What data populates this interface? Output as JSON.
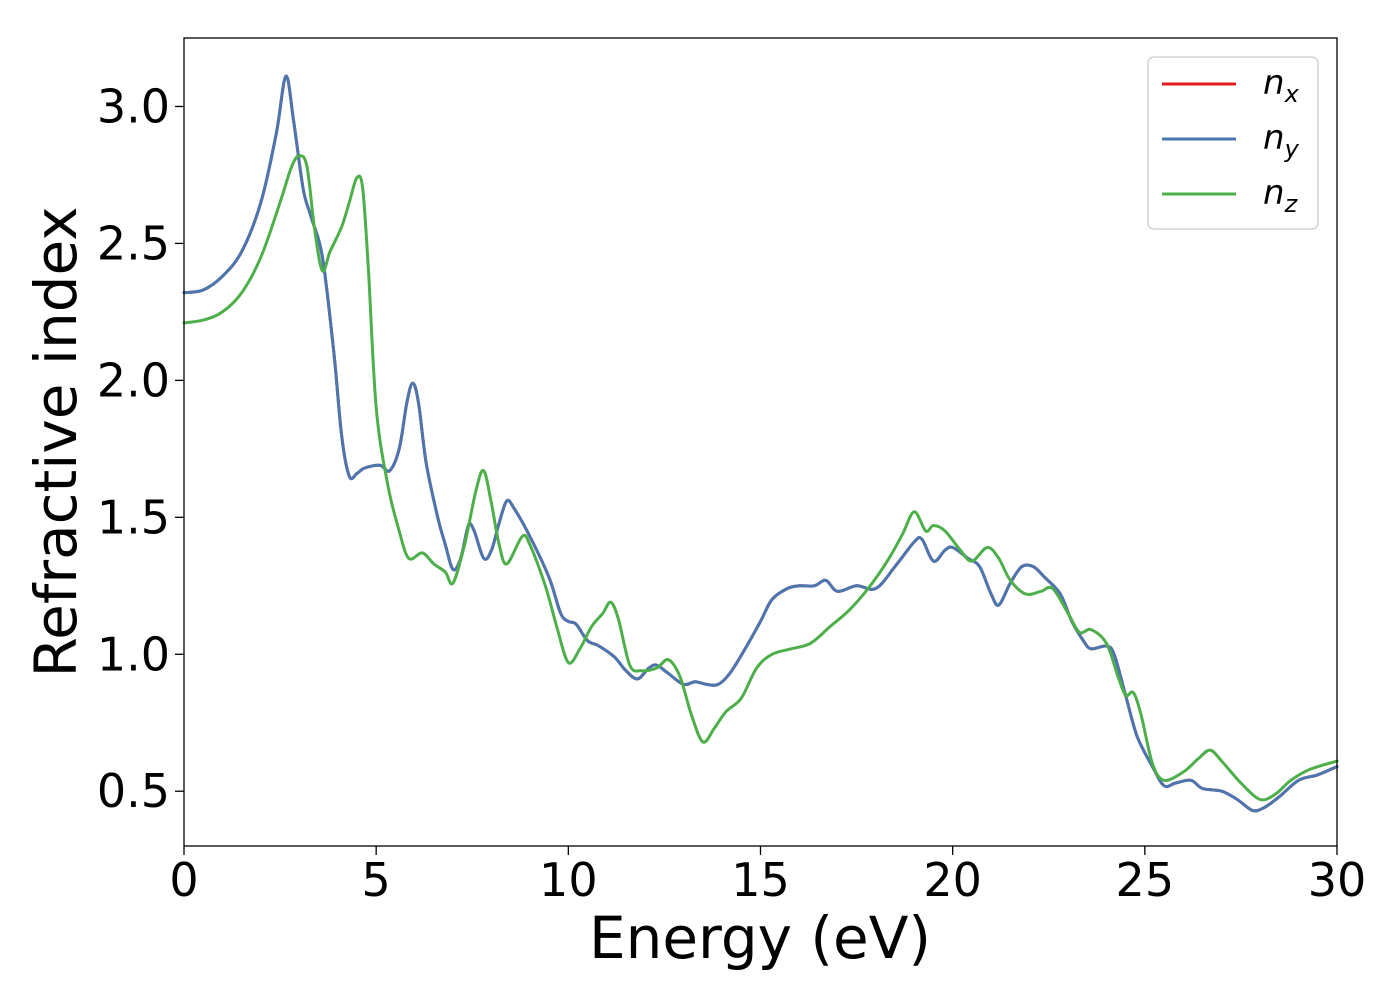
{
  "chart_data": {
    "type": "line",
    "title": "",
    "xlabel": "Energy (eV)",
    "ylabel": "Refractive index",
    "xlim": [
      0,
      30
    ],
    "ylim": [
      0.3,
      3.25
    ],
    "xticks": [
      0,
      5,
      10,
      15,
      20,
      25,
      30
    ],
    "yticks": [
      0.5,
      1.0,
      1.5,
      2.0,
      2.5,
      3.0
    ],
    "xtick_labels": [
      "0",
      "5",
      "10",
      "15",
      "20",
      "25",
      "30"
    ],
    "ytick_labels": [
      "0.5",
      "1.0",
      "1.5",
      "2.0",
      "2.5",
      "3.0"
    ],
    "grid": false,
    "legend_position": "top-right",
    "series": [
      {
        "name": "n_x",
        "label_base": "n",
        "label_sub": "x",
        "color": "#e41a1c",
        "points": [
          [
            0,
            2.32
          ],
          [
            0.5,
            2.33
          ],
          [
            1,
            2.38
          ],
          [
            1.5,
            2.47
          ],
          [
            2,
            2.65
          ],
          [
            2.4,
            2.9
          ],
          [
            2.65,
            3.11
          ],
          [
            2.85,
            2.95
          ],
          [
            3.1,
            2.7
          ],
          [
            3.3,
            2.6
          ],
          [
            3.6,
            2.45
          ],
          [
            3.9,
            2.1
          ],
          [
            4.1,
            1.8
          ],
          [
            4.3,
            1.65
          ],
          [
            4.5,
            1.66
          ],
          [
            4.7,
            1.68
          ],
          [
            5.1,
            1.69
          ],
          [
            5.35,
            1.67
          ],
          [
            5.6,
            1.75
          ],
          [
            5.8,
            1.92
          ],
          [
            5.95,
            1.99
          ],
          [
            6.1,
            1.92
          ],
          [
            6.3,
            1.7
          ],
          [
            6.6,
            1.5
          ],
          [
            6.8,
            1.4
          ],
          [
            7.0,
            1.31
          ],
          [
            7.2,
            1.35
          ],
          [
            7.4,
            1.47
          ],
          [
            7.55,
            1.45
          ],
          [
            7.8,
            1.35
          ],
          [
            8.0,
            1.38
          ],
          [
            8.2,
            1.48
          ],
          [
            8.4,
            1.56
          ],
          [
            8.6,
            1.53
          ],
          [
            9.0,
            1.43
          ],
          [
            9.5,
            1.28
          ],
          [
            9.8,
            1.15
          ],
          [
            10.0,
            1.12
          ],
          [
            10.2,
            1.11
          ],
          [
            10.5,
            1.05
          ],
          [
            10.8,
            1.03
          ],
          [
            11.2,
            0.99
          ],
          [
            11.5,
            0.94
          ],
          [
            11.8,
            0.91
          ],
          [
            12.1,
            0.95
          ],
          [
            12.3,
            0.96
          ],
          [
            12.6,
            0.93
          ],
          [
            13.0,
            0.89
          ],
          [
            13.3,
            0.9
          ],
          [
            13.6,
            0.89
          ],
          [
            13.9,
            0.89
          ],
          [
            14.2,
            0.93
          ],
          [
            14.6,
            1.02
          ],
          [
            15.0,
            1.12
          ],
          [
            15.3,
            1.2
          ],
          [
            15.7,
            1.24
          ],
          [
            16.0,
            1.25
          ],
          [
            16.4,
            1.25
          ],
          [
            16.7,
            1.27
          ],
          [
            17.0,
            1.23
          ],
          [
            17.5,
            1.25
          ],
          [
            18.0,
            1.24
          ],
          [
            18.5,
            1.32
          ],
          [
            19.0,
            1.41
          ],
          [
            19.2,
            1.42
          ],
          [
            19.5,
            1.34
          ],
          [
            19.8,
            1.38
          ],
          [
            20.0,
            1.39
          ],
          [
            20.4,
            1.35
          ],
          [
            20.7,
            1.32
          ],
          [
            21.0,
            1.22
          ],
          [
            21.2,
            1.18
          ],
          [
            21.5,
            1.26
          ],
          [
            21.8,
            1.32
          ],
          [
            22.1,
            1.32
          ],
          [
            22.4,
            1.28
          ],
          [
            22.8,
            1.22
          ],
          [
            23.1,
            1.12
          ],
          [
            23.4,
            1.05
          ],
          [
            23.6,
            1.02
          ],
          [
            24.0,
            1.03
          ],
          [
            24.2,
            1.0
          ],
          [
            24.5,
            0.85
          ],
          [
            24.8,
            0.7
          ],
          [
            25.2,
            0.59
          ],
          [
            25.5,
            0.52
          ],
          [
            25.8,
            0.53
          ],
          [
            26.2,
            0.54
          ],
          [
            26.5,
            0.51
          ],
          [
            27.0,
            0.5
          ],
          [
            27.4,
            0.47
          ],
          [
            27.8,
            0.43
          ],
          [
            28.1,
            0.44
          ],
          [
            28.5,
            0.48
          ],
          [
            29.0,
            0.54
          ],
          [
            29.5,
            0.56
          ],
          [
            30.0,
            0.59
          ]
        ]
      },
      {
        "name": "n_y",
        "label_base": "n",
        "label_sub": "y",
        "color": "#4a77b0",
        "points": [
          [
            0,
            2.32
          ],
          [
            0.5,
            2.33
          ],
          [
            1,
            2.38
          ],
          [
            1.5,
            2.47
          ],
          [
            2,
            2.65
          ],
          [
            2.4,
            2.9
          ],
          [
            2.65,
            3.11
          ],
          [
            2.85,
            2.95
          ],
          [
            3.1,
            2.7
          ],
          [
            3.3,
            2.6
          ],
          [
            3.6,
            2.45
          ],
          [
            3.9,
            2.1
          ],
          [
            4.1,
            1.8
          ],
          [
            4.3,
            1.65
          ],
          [
            4.5,
            1.66
          ],
          [
            4.7,
            1.68
          ],
          [
            5.1,
            1.69
          ],
          [
            5.35,
            1.67
          ],
          [
            5.6,
            1.75
          ],
          [
            5.8,
            1.92
          ],
          [
            5.95,
            1.99
          ],
          [
            6.1,
            1.92
          ],
          [
            6.3,
            1.7
          ],
          [
            6.6,
            1.5
          ],
          [
            6.8,
            1.4
          ],
          [
            7.0,
            1.31
          ],
          [
            7.2,
            1.35
          ],
          [
            7.4,
            1.47
          ],
          [
            7.55,
            1.45
          ],
          [
            7.8,
            1.35
          ],
          [
            8.0,
            1.38
          ],
          [
            8.2,
            1.48
          ],
          [
            8.4,
            1.56
          ],
          [
            8.6,
            1.53
          ],
          [
            9.0,
            1.43
          ],
          [
            9.5,
            1.28
          ],
          [
            9.8,
            1.15
          ],
          [
            10.0,
            1.12
          ],
          [
            10.2,
            1.11
          ],
          [
            10.5,
            1.05
          ],
          [
            10.8,
            1.03
          ],
          [
            11.2,
            0.99
          ],
          [
            11.5,
            0.94
          ],
          [
            11.8,
            0.91
          ],
          [
            12.1,
            0.95
          ],
          [
            12.3,
            0.96
          ],
          [
            12.6,
            0.93
          ],
          [
            13.0,
            0.89
          ],
          [
            13.3,
            0.9
          ],
          [
            13.6,
            0.89
          ],
          [
            13.9,
            0.89
          ],
          [
            14.2,
            0.93
          ],
          [
            14.6,
            1.02
          ],
          [
            15.0,
            1.12
          ],
          [
            15.3,
            1.2
          ],
          [
            15.7,
            1.24
          ],
          [
            16.0,
            1.25
          ],
          [
            16.4,
            1.25
          ],
          [
            16.7,
            1.27
          ],
          [
            17.0,
            1.23
          ],
          [
            17.5,
            1.25
          ],
          [
            18.0,
            1.24
          ],
          [
            18.5,
            1.32
          ],
          [
            19.0,
            1.41
          ],
          [
            19.2,
            1.42
          ],
          [
            19.5,
            1.34
          ],
          [
            19.8,
            1.38
          ],
          [
            20.0,
            1.39
          ],
          [
            20.4,
            1.35
          ],
          [
            20.7,
            1.32
          ],
          [
            21.0,
            1.22
          ],
          [
            21.2,
            1.18
          ],
          [
            21.5,
            1.26
          ],
          [
            21.8,
            1.32
          ],
          [
            22.1,
            1.32
          ],
          [
            22.4,
            1.28
          ],
          [
            22.8,
            1.22
          ],
          [
            23.1,
            1.12
          ],
          [
            23.4,
            1.05
          ],
          [
            23.6,
            1.02
          ],
          [
            24.0,
            1.03
          ],
          [
            24.2,
            1.0
          ],
          [
            24.5,
            0.85
          ],
          [
            24.8,
            0.7
          ],
          [
            25.2,
            0.59
          ],
          [
            25.5,
            0.52
          ],
          [
            25.8,
            0.53
          ],
          [
            26.2,
            0.54
          ],
          [
            26.5,
            0.51
          ],
          [
            27.0,
            0.5
          ],
          [
            27.4,
            0.47
          ],
          [
            27.8,
            0.43
          ],
          [
            28.1,
            0.44
          ],
          [
            28.5,
            0.48
          ],
          [
            29.0,
            0.54
          ],
          [
            29.5,
            0.56
          ],
          [
            30.0,
            0.59
          ]
        ]
      },
      {
        "name": "n_z",
        "label_base": "n",
        "label_sub": "z",
        "color": "#4daf4a",
        "points": [
          [
            0,
            2.21
          ],
          [
            0.5,
            2.22
          ],
          [
            1,
            2.25
          ],
          [
            1.5,
            2.32
          ],
          [
            2,
            2.45
          ],
          [
            2.5,
            2.65
          ],
          [
            2.8,
            2.78
          ],
          [
            3.0,
            2.82
          ],
          [
            3.2,
            2.78
          ],
          [
            3.4,
            2.55
          ],
          [
            3.6,
            2.4
          ],
          [
            3.8,
            2.47
          ],
          [
            4.1,
            2.56
          ],
          [
            4.3,
            2.65
          ],
          [
            4.5,
            2.74
          ],
          [
            4.65,
            2.7
          ],
          [
            4.8,
            2.4
          ],
          [
            5.0,
            1.9
          ],
          [
            5.3,
            1.62
          ],
          [
            5.6,
            1.45
          ],
          [
            5.85,
            1.35
          ],
          [
            6.2,
            1.37
          ],
          [
            6.5,
            1.33
          ],
          [
            6.8,
            1.3
          ],
          [
            7.0,
            1.26
          ],
          [
            7.3,
            1.4
          ],
          [
            7.6,
            1.6
          ],
          [
            7.8,
            1.67
          ],
          [
            8.0,
            1.55
          ],
          [
            8.2,
            1.4
          ],
          [
            8.4,
            1.33
          ],
          [
            8.8,
            1.43
          ],
          [
            9.0,
            1.4
          ],
          [
            9.4,
            1.25
          ],
          [
            9.7,
            1.1
          ],
          [
            10.0,
            0.97
          ],
          [
            10.3,
            1.02
          ],
          [
            10.6,
            1.1
          ],
          [
            10.9,
            1.15
          ],
          [
            11.1,
            1.19
          ],
          [
            11.3,
            1.13
          ],
          [
            11.6,
            0.96
          ],
          [
            11.9,
            0.94
          ],
          [
            12.3,
            0.95
          ],
          [
            12.6,
            0.98
          ],
          [
            12.9,
            0.92
          ],
          [
            13.2,
            0.78
          ],
          [
            13.5,
            0.68
          ],
          [
            13.8,
            0.73
          ],
          [
            14.1,
            0.79
          ],
          [
            14.5,
            0.84
          ],
          [
            14.9,
            0.95
          ],
          [
            15.3,
            1.0
          ],
          [
            15.8,
            1.02
          ],
          [
            16.3,
            1.04
          ],
          [
            16.8,
            1.1
          ],
          [
            17.3,
            1.16
          ],
          [
            17.8,
            1.24
          ],
          [
            18.3,
            1.34
          ],
          [
            18.7,
            1.44
          ],
          [
            19.0,
            1.52
          ],
          [
            19.3,
            1.45
          ],
          [
            19.5,
            1.47
          ],
          [
            19.8,
            1.45
          ],
          [
            20.2,
            1.38
          ],
          [
            20.5,
            1.34
          ],
          [
            20.9,
            1.39
          ],
          [
            21.2,
            1.35
          ],
          [
            21.5,
            1.27
          ],
          [
            21.9,
            1.22
          ],
          [
            22.3,
            1.23
          ],
          [
            22.6,
            1.24
          ],
          [
            23.0,
            1.15
          ],
          [
            23.3,
            1.08
          ],
          [
            23.6,
            1.09
          ],
          [
            24.0,
            1.04
          ],
          [
            24.3,
            0.92
          ],
          [
            24.5,
            0.85
          ],
          [
            24.7,
            0.86
          ],
          [
            24.9,
            0.78
          ],
          [
            25.2,
            0.6
          ],
          [
            25.5,
            0.54
          ],
          [
            26.0,
            0.57
          ],
          [
            26.4,
            0.62
          ],
          [
            26.7,
            0.65
          ],
          [
            27.0,
            0.61
          ],
          [
            27.5,
            0.53
          ],
          [
            28.0,
            0.47
          ],
          [
            28.4,
            0.49
          ],
          [
            28.8,
            0.54
          ],
          [
            29.3,
            0.58
          ],
          [
            30.0,
            0.61
          ]
        ]
      }
    ]
  }
}
